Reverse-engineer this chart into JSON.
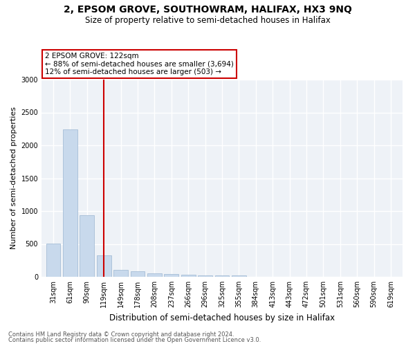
{
  "title": "2, EPSOM GROVE, SOUTHOWRAM, HALIFAX, HX3 9NQ",
  "subtitle": "Size of property relative to semi-detached houses in Halifax",
  "xlabel": "Distribution of semi-detached houses by size in Halifax",
  "ylabel": "Number of semi-detached properties",
  "footnote1": "Contains HM Land Registry data © Crown copyright and database right 2024.",
  "footnote2": "Contains public sector information licensed under the Open Government Licence v3.0.",
  "categories": [
    "31sqm",
    "61sqm",
    "90sqm",
    "119sqm",
    "149sqm",
    "178sqm",
    "208sqm",
    "237sqm",
    "266sqm",
    "296sqm",
    "325sqm",
    "355sqm",
    "384sqm",
    "413sqm",
    "443sqm",
    "472sqm",
    "501sqm",
    "531sqm",
    "560sqm",
    "590sqm",
    "619sqm"
  ],
  "values": [
    510,
    2240,
    940,
    330,
    105,
    82,
    50,
    38,
    30,
    25,
    22,
    22,
    0,
    0,
    0,
    0,
    0,
    0,
    0,
    0,
    0
  ],
  "bar_color": "#c8d9ec",
  "bar_edge_color": "#9ab5d0",
  "marker_index": 3,
  "marker_label": "2 EPSOM GROVE: 122sqm",
  "marker_line_color": "#cc0000",
  "annotation_text1": "← 88% of semi-detached houses are smaller (3,694)",
  "annotation_text2": "12% of semi-detached houses are larger (503) →",
  "annotation_box_color": "#cc0000",
  "annotation_fill_color": "#ffffff",
  "ylim": [
    0,
    3000
  ],
  "yticks": [
    0,
    500,
    1000,
    1500,
    2000,
    2500,
    3000
  ],
  "background_color": "#eef2f7",
  "grid_color": "#ffffff",
  "title_fontsize": 10,
  "subtitle_fontsize": 8.5,
  "xlabel_fontsize": 8.5,
  "ylabel_fontsize": 8,
  "tick_fontsize": 7,
  "annot_fontsize": 7.5,
  "footnote_fontsize": 6
}
